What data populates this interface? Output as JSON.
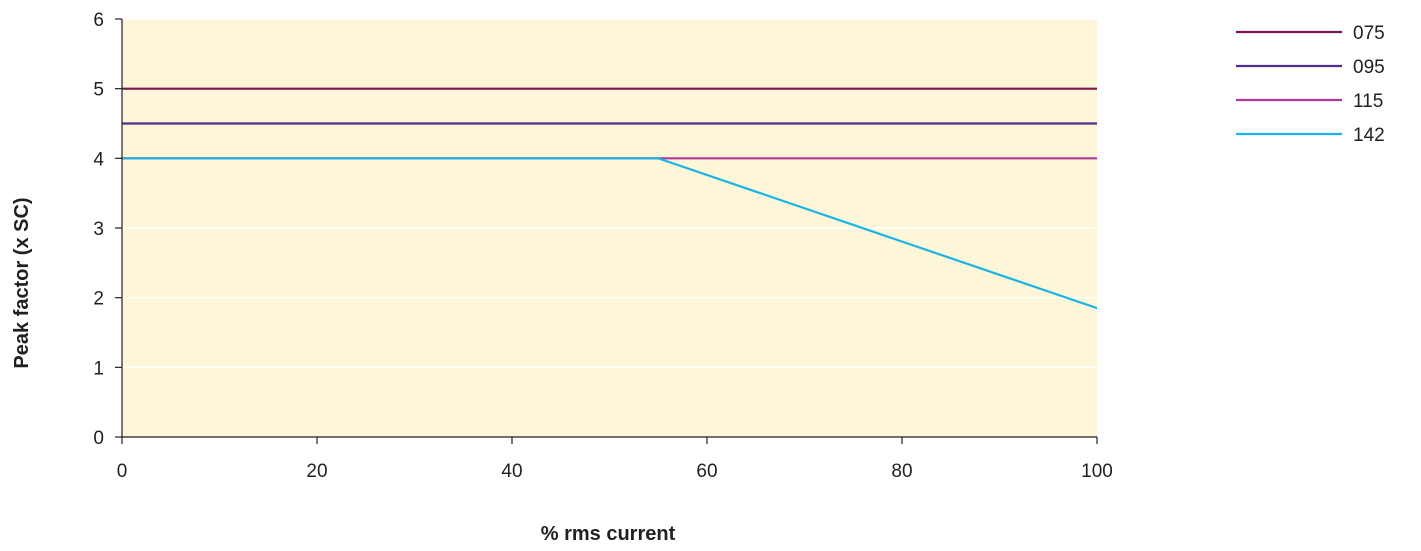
{
  "chart_data": {
    "type": "line",
    "xlabel": "% rms current",
    "ylabel": "Peak factor (x SC)",
    "xlim": [
      0,
      100
    ],
    "ylim": [
      0,
      6
    ],
    "xticks": [
      0,
      20,
      40,
      60,
      80,
      100
    ],
    "yticks": [
      0,
      1,
      2,
      3,
      4,
      5,
      6
    ],
    "xtick_labels": [
      "0",
      "20",
      "40",
      "60",
      "80",
      "100"
    ],
    "ytick_labels": [
      "0",
      "1",
      "2",
      "3",
      "4",
      "5",
      "6"
    ],
    "grid": "horizontal",
    "legend_position": "top-right",
    "colors": {
      "plot_background": "#fdf6d9",
      "grid": "#ffffff",
      "axis": "#231f20"
    },
    "series": [
      {
        "name": "075",
        "color": "#7a1450",
        "x": [
          0,
          100
        ],
        "y": [
          5.0,
          5.0
        ]
      },
      {
        "name": "095",
        "color": "#4b2f8f",
        "x": [
          0,
          100
        ],
        "y": [
          4.5,
          4.5
        ]
      },
      {
        "name": "115",
        "color": "#b0399a",
        "x": [
          0,
          100
        ],
        "y": [
          4.0,
          4.0
        ]
      },
      {
        "name": "142",
        "color": "#1ab4e6",
        "x": [
          0,
          55,
          100
        ],
        "y": [
          4.0,
          4.0,
          1.85
        ]
      }
    ]
  }
}
